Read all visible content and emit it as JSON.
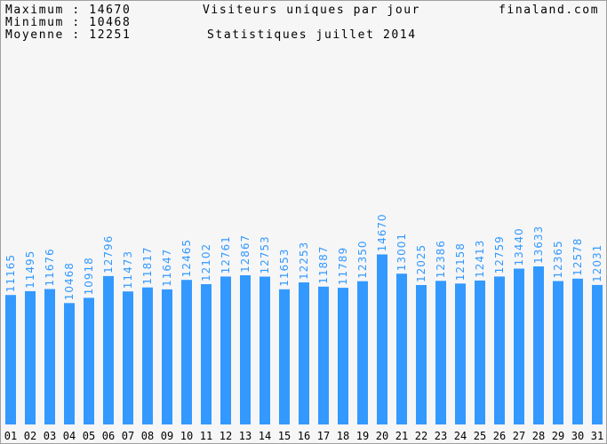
{
  "header": {
    "max_label": "Maximum",
    "max_value": "14670",
    "min_label": "Minimum",
    "min_value": "10468",
    "avg_label": "Moyenne",
    "avg_value": "12251",
    "title": "Visiteurs uniques par jour",
    "subtitle": "Statistiques juillet 2014",
    "site": "finaland.com"
  },
  "colors": {
    "bar": "#3399ff",
    "value_label": "#3399ff",
    "background": "#f6f6f6",
    "text": "#000000"
  },
  "chart_data": {
    "type": "bar",
    "title": "Visiteurs uniques par jour",
    "subtitle": "Statistiques juillet 2014",
    "categories": [
      "01",
      "02",
      "03",
      "04",
      "05",
      "06",
      "07",
      "08",
      "09",
      "10",
      "11",
      "12",
      "13",
      "14",
      "15",
      "16",
      "17",
      "18",
      "19",
      "20",
      "21",
      "22",
      "23",
      "24",
      "25",
      "26",
      "27",
      "28",
      "29",
      "30",
      "31"
    ],
    "values": [
      11165,
      11495,
      11676,
      10468,
      10918,
      12796,
      11473,
      11817,
      11647,
      12465,
      12102,
      12761,
      12867,
      12753,
      11653,
      12253,
      11887,
      11789,
      12350,
      14670,
      13001,
      12025,
      12386,
      12158,
      12413,
      12759,
      13440,
      13633,
      12365,
      12578,
      12031
    ],
    "ylim": [
      0,
      35000
    ],
    "grid": false,
    "legend": "none"
  }
}
